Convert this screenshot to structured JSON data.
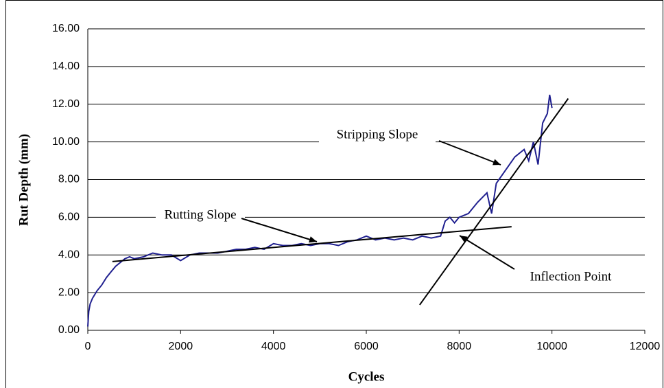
{
  "chart_data": {
    "type": "line",
    "xlabel": "Cycles",
    "ylabel": "Rut Depth (mm)",
    "x": [
      0,
      20,
      50,
      100,
      200,
      300,
      400,
      500,
      600,
      700,
      800,
      900,
      1000,
      1200,
      1400,
      1600,
      1800,
      2000,
      2200,
      2400,
      2600,
      2800,
      3000,
      3200,
      3400,
      3600,
      3800,
      4000,
      4200,
      4400,
      4600,
      4800,
      5000,
      5200,
      5400,
      5600,
      5800,
      6000,
      6200,
      6400,
      6600,
      6800,
      7000,
      7200,
      7400,
      7600,
      7700,
      7800,
      7900,
      8000,
      8200,
      8400,
      8600,
      8700,
      8800,
      9000,
      9200,
      9400,
      9500,
      9600,
      9700,
      9800,
      9900,
      9950,
      10000
    ],
    "values": [
      0.2,
      1.0,
      1.4,
      1.7,
      2.1,
      2.4,
      2.8,
      3.1,
      3.4,
      3.6,
      3.8,
      3.9,
      3.8,
      3.9,
      4.1,
      4.0,
      4.0,
      3.7,
      4.0,
      4.1,
      4.1,
      4.1,
      4.2,
      4.3,
      4.3,
      4.4,
      4.3,
      4.6,
      4.5,
      4.5,
      4.6,
      4.5,
      4.6,
      4.6,
      4.5,
      4.7,
      4.8,
      5.0,
      4.8,
      4.9,
      4.8,
      4.9,
      4.8,
      5.0,
      4.9,
      5.0,
      5.8,
      6.0,
      5.7,
      6.0,
      6.2,
      6.8,
      7.3,
      6.2,
      7.8,
      8.5,
      9.2,
      9.6,
      9.0,
      10.0,
      8.8,
      11.0,
      11.5,
      12.5,
      11.8
    ],
    "color": "#1f1f8f",
    "xlim": [
      0,
      12000
    ],
    "xticks": [
      0,
      2000,
      4000,
      6000,
      8000,
      10000,
      12000
    ],
    "ylim": [
      0,
      16
    ],
    "yticks": [
      {
        "value": 0,
        "label": "0.00"
      },
      {
        "value": 2,
        "label": "2.00"
      },
      {
        "value": 4,
        "label": "4.00"
      },
      {
        "value": 6,
        "label": "6.00"
      },
      {
        "value": 8,
        "label": "8.00"
      },
      {
        "value": 10,
        "label": "10.00"
      },
      {
        "value": 12,
        "label": "12.00"
      },
      {
        "value": 14,
        "label": "14.00"
      },
      {
        "value": 16,
        "label": "16.00"
      }
    ],
    "grid": true,
    "trend_lines": [
      {
        "label": "Rutting Slope",
        "x": [
          530,
          9130
        ],
        "y": [
          3.65,
          5.5
        ]
      },
      {
        "label": "Stripping Slope",
        "x": [
          7150,
          10350
        ],
        "y": [
          1.35,
          12.3
        ]
      }
    ],
    "annotations": [
      {
        "text": "Inflection Point"
      }
    ]
  }
}
